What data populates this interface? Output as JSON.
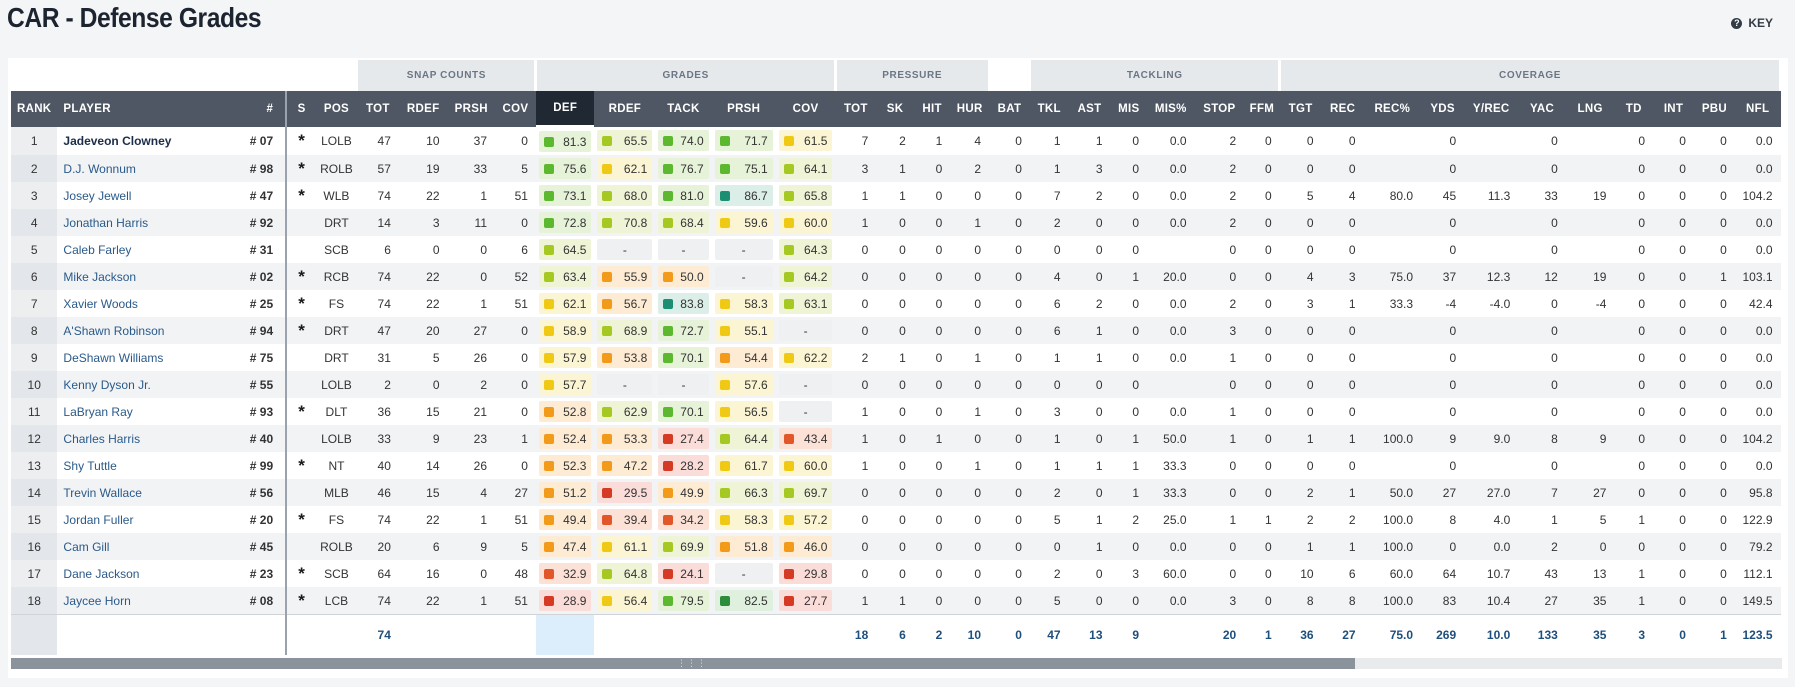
{
  "title": "CAR - Defense Grades",
  "key_label": "KEY",
  "groups": {
    "snap": "SNAP COUNTS",
    "grades": "GRADES",
    "pressure": "PRESSURE",
    "tackling": "TACKLING",
    "coverage": "COVERAGE"
  },
  "headers": [
    "RANK",
    "PLAYER",
    "#",
    "S",
    "POS",
    "TOT",
    "RDEF",
    "PRSH",
    "COV",
    "DEF",
    "RDEF",
    "TACK",
    "PRSH",
    "COV",
    "TOT",
    "SK",
    "HIT",
    "HUR",
    "BAT",
    "TKL",
    "AST",
    "MIS",
    "MIS%",
    "STOP",
    "FFM",
    "TGT",
    "REC",
    "REC%",
    "YDS",
    "Y/REC",
    "YAC",
    "LNG",
    "TD",
    "INT",
    "PBU",
    "NFL"
  ],
  "rows": [
    {
      "rank": "1",
      "player": "Jadeveon Clowney",
      "jersey": "# 07",
      "s": "*",
      "pos": "LOLB",
      "snap": [
        "47",
        "10",
        "37",
        "0"
      ],
      "grades": [
        [
          "81.3",
          "gr"
        ],
        [
          "65.5",
          "lg"
        ],
        [
          "74.0",
          "gr"
        ],
        [
          "71.7",
          "gr"
        ],
        [
          "61.5",
          "yl"
        ]
      ],
      "stats": [
        "7",
        "2",
        "1",
        "4",
        "0",
        "1",
        "1",
        "0",
        "0.0",
        "2",
        "0",
        "0",
        "0",
        "",
        "0",
        "",
        "0",
        "",
        "0",
        "0",
        "0",
        "0.0"
      ]
    },
    {
      "rank": "2",
      "player": "D.J. Wonnum",
      "jersey": "# 98",
      "s": "*",
      "pos": "ROLB",
      "snap": [
        "57",
        "19",
        "33",
        "5"
      ],
      "grades": [
        [
          "75.6",
          "gr"
        ],
        [
          "62.1",
          "yl"
        ],
        [
          "76.7",
          "gr"
        ],
        [
          "75.1",
          "gr"
        ],
        [
          "64.1",
          "lg"
        ]
      ],
      "stats": [
        "3",
        "1",
        "0",
        "2",
        "0",
        "1",
        "3",
        "0",
        "0.0",
        "2",
        "0",
        "0",
        "0",
        "",
        "0",
        "",
        "0",
        "",
        "0",
        "0",
        "0",
        "0.0"
      ]
    },
    {
      "rank": "3",
      "player": "Josey Jewell",
      "jersey": "# 47",
      "s": "*",
      "pos": "WLB",
      "snap": [
        "74",
        "22",
        "1",
        "51"
      ],
      "grades": [
        [
          "73.1",
          "gr"
        ],
        [
          "68.0",
          "lg"
        ],
        [
          "81.0",
          "gr"
        ],
        [
          "86.7",
          "tl"
        ],
        [
          "65.8",
          "lg"
        ]
      ],
      "stats": [
        "1",
        "1",
        "0",
        "0",
        "0",
        "7",
        "2",
        "0",
        "0.0",
        "2",
        "0",
        "5",
        "4",
        "80.0",
        "45",
        "11.3",
        "33",
        "19",
        "0",
        "0",
        "0",
        "104.2"
      ]
    },
    {
      "rank": "4",
      "player": "Jonathan Harris",
      "jersey": "# 92",
      "s": "",
      "pos": "DRT",
      "snap": [
        "14",
        "3",
        "11",
        "0"
      ],
      "grades": [
        [
          "72.8",
          "gr"
        ],
        [
          "70.8",
          "lg"
        ],
        [
          "68.4",
          "lg"
        ],
        [
          "59.6",
          "yl"
        ],
        [
          "60.0",
          "yl"
        ]
      ],
      "stats": [
        "1",
        "0",
        "0",
        "1",
        "0",
        "2",
        "0",
        "0",
        "0.0",
        "2",
        "0",
        "0",
        "0",
        "",
        "0",
        "",
        "0",
        "",
        "0",
        "0",
        "0",
        "0.0"
      ]
    },
    {
      "rank": "5",
      "player": "Caleb Farley",
      "jersey": "# 31",
      "s": "",
      "pos": "SCB",
      "snap": [
        "6",
        "0",
        "0",
        "6"
      ],
      "grades": [
        [
          "64.5",
          "lg"
        ],
        [
          "-",
          ""
        ],
        [
          "-",
          ""
        ],
        [
          "-",
          ""
        ],
        [
          "64.3",
          "lg"
        ]
      ],
      "stats": [
        "0",
        "0",
        "0",
        "0",
        "0",
        "0",
        "0",
        "0",
        "",
        "0",
        "0",
        "0",
        "0",
        "",
        "0",
        "",
        "0",
        "",
        "0",
        "0",
        "0",
        "0.0"
      ]
    },
    {
      "rank": "6",
      "player": "Mike Jackson",
      "jersey": "# 02",
      "s": "*",
      "pos": "RCB",
      "snap": [
        "74",
        "22",
        "0",
        "52"
      ],
      "grades": [
        [
          "63.4",
          "lg"
        ],
        [
          "55.9",
          "or"
        ],
        [
          "50.0",
          "or"
        ],
        [
          "-",
          ""
        ],
        [
          "64.2",
          "lg"
        ]
      ],
      "stats": [
        "0",
        "0",
        "0",
        "0",
        "0",
        "4",
        "0",
        "1",
        "20.0",
        "0",
        "0",
        "4",
        "3",
        "75.0",
        "37",
        "12.3",
        "12",
        "19",
        "0",
        "0",
        "1",
        "103.1"
      ]
    },
    {
      "rank": "7",
      "player": "Xavier Woods",
      "jersey": "# 25",
      "s": "*",
      "pos": "FS",
      "snap": [
        "74",
        "22",
        "1",
        "51"
      ],
      "grades": [
        [
          "62.1",
          "yl"
        ],
        [
          "56.7",
          "or"
        ],
        [
          "83.8",
          "tl"
        ],
        [
          "58.3",
          "yl"
        ],
        [
          "63.1",
          "lg"
        ]
      ],
      "stats": [
        "0",
        "0",
        "0",
        "0",
        "0",
        "6",
        "2",
        "0",
        "0.0",
        "2",
        "0",
        "3",
        "1",
        "33.3",
        "-4",
        "-4.0",
        "0",
        "-4",
        "0",
        "0",
        "0",
        "42.4"
      ]
    },
    {
      "rank": "8",
      "player": "A'Shawn Robinson",
      "jersey": "# 94",
      "s": "*",
      "pos": "DRT",
      "snap": [
        "47",
        "20",
        "27",
        "0"
      ],
      "grades": [
        [
          "58.9",
          "yl"
        ],
        [
          "68.9",
          "lg"
        ],
        [
          "72.7",
          "gr"
        ],
        [
          "55.1",
          "yl"
        ],
        [
          "-",
          ""
        ]
      ],
      "stats": [
        "0",
        "0",
        "0",
        "0",
        "0",
        "6",
        "1",
        "0",
        "0.0",
        "3",
        "0",
        "0",
        "0",
        "",
        "0",
        "",
        "0",
        "",
        "0",
        "0",
        "0",
        "0.0"
      ]
    },
    {
      "rank": "9",
      "player": "DeShawn Williams",
      "jersey": "# 75",
      "s": "",
      "pos": "DRT",
      "snap": [
        "31",
        "5",
        "26",
        "0"
      ],
      "grades": [
        [
          "57.9",
          "yl"
        ],
        [
          "53.8",
          "or"
        ],
        [
          "70.1",
          "gr"
        ],
        [
          "54.4",
          "or"
        ],
        [
          "62.2",
          "yl"
        ]
      ],
      "stats": [
        "2",
        "1",
        "0",
        "1",
        "0",
        "1",
        "1",
        "0",
        "0.0",
        "1",
        "0",
        "0",
        "0",
        "",
        "0",
        "",
        "0",
        "",
        "0",
        "0",
        "0",
        "0.0"
      ]
    },
    {
      "rank": "10",
      "player": "Kenny Dyson Jr.",
      "jersey": "# 55",
      "s": "",
      "pos": "LOLB",
      "snap": [
        "2",
        "0",
        "2",
        "0"
      ],
      "grades": [
        [
          "57.7",
          "yl"
        ],
        [
          "-",
          ""
        ],
        [
          "-",
          ""
        ],
        [
          "57.6",
          "yl"
        ],
        [
          "-",
          ""
        ]
      ],
      "stats": [
        "0",
        "0",
        "0",
        "0",
        "0",
        "0",
        "0",
        "0",
        "",
        "0",
        "0",
        "0",
        "0",
        "",
        "0",
        "",
        "0",
        "",
        "0",
        "0",
        "0",
        "0.0"
      ]
    },
    {
      "rank": "11",
      "player": "LaBryan Ray",
      "jersey": "# 93",
      "s": "*",
      "pos": "DLT",
      "snap": [
        "36",
        "15",
        "21",
        "0"
      ],
      "grades": [
        [
          "52.8",
          "or"
        ],
        [
          "62.9",
          "lg"
        ],
        [
          "70.1",
          "gr"
        ],
        [
          "56.5",
          "yl"
        ],
        [
          "-",
          ""
        ]
      ],
      "stats": [
        "1",
        "0",
        "0",
        "1",
        "0",
        "3",
        "0",
        "0",
        "0.0",
        "1",
        "0",
        "0",
        "0",
        "",
        "0",
        "",
        "0",
        "",
        "0",
        "0",
        "0",
        "0.0"
      ]
    },
    {
      "rank": "12",
      "player": "Charles Harris",
      "jersey": "# 40",
      "s": "",
      "pos": "LOLB",
      "snap": [
        "33",
        "9",
        "23",
        "1"
      ],
      "grades": [
        [
          "52.4",
          "or"
        ],
        [
          "53.3",
          "or"
        ],
        [
          "27.4",
          "rd"
        ],
        [
          "64.4",
          "lg"
        ],
        [
          "43.4",
          "ro"
        ]
      ],
      "stats": [
        "1",
        "0",
        "1",
        "0",
        "0",
        "1",
        "0",
        "1",
        "50.0",
        "1",
        "0",
        "1",
        "1",
        "100.0",
        "9",
        "9.0",
        "8",
        "9",
        "0",
        "0",
        "0",
        "104.2"
      ]
    },
    {
      "rank": "13",
      "player": "Shy Tuttle",
      "jersey": "# 99",
      "s": "*",
      "pos": "NT",
      "snap": [
        "40",
        "14",
        "26",
        "0"
      ],
      "grades": [
        [
          "52.3",
          "or"
        ],
        [
          "47.2",
          "or"
        ],
        [
          "28.2",
          "rd"
        ],
        [
          "61.7",
          "yl"
        ],
        [
          "60.0",
          "yl"
        ]
      ],
      "stats": [
        "1",
        "0",
        "0",
        "1",
        "0",
        "1",
        "1",
        "1",
        "33.3",
        "0",
        "0",
        "0",
        "0",
        "",
        "0",
        "",
        "0",
        "",
        "0",
        "0",
        "0",
        "0.0"
      ]
    },
    {
      "rank": "14",
      "player": "Trevin Wallace",
      "jersey": "# 56",
      "s": "",
      "pos": "MLB",
      "snap": [
        "46",
        "15",
        "4",
        "27"
      ],
      "grades": [
        [
          "51.2",
          "or"
        ],
        [
          "29.5",
          "rd"
        ],
        [
          "49.9",
          "or"
        ],
        [
          "66.3",
          "lg"
        ],
        [
          "69.7",
          "lg"
        ]
      ],
      "stats": [
        "0",
        "0",
        "0",
        "0",
        "0",
        "2",
        "0",
        "1",
        "33.3",
        "0",
        "0",
        "2",
        "1",
        "50.0",
        "27",
        "27.0",
        "7",
        "27",
        "0",
        "0",
        "0",
        "95.8"
      ]
    },
    {
      "rank": "15",
      "player": "Jordan Fuller",
      "jersey": "# 20",
      "s": "*",
      "pos": "FS",
      "snap": [
        "74",
        "22",
        "1",
        "51"
      ],
      "grades": [
        [
          "49.4",
          "or"
        ],
        [
          "39.4",
          "ro"
        ],
        [
          "34.2",
          "ro"
        ],
        [
          "58.3",
          "yl"
        ],
        [
          "57.2",
          "yl"
        ]
      ],
      "stats": [
        "0",
        "0",
        "0",
        "0",
        "0",
        "5",
        "1",
        "2",
        "25.0",
        "1",
        "1",
        "2",
        "2",
        "100.0",
        "8",
        "4.0",
        "1",
        "5",
        "1",
        "0",
        "0",
        "122.9"
      ]
    },
    {
      "rank": "16",
      "player": "Cam Gill",
      "jersey": "# 45",
      "s": "",
      "pos": "ROLB",
      "snap": [
        "20",
        "6",
        "9",
        "5"
      ],
      "grades": [
        [
          "47.4",
          "or"
        ],
        [
          "61.1",
          "yl"
        ],
        [
          "69.9",
          "lg"
        ],
        [
          "51.8",
          "or"
        ],
        [
          "46.0",
          "or"
        ]
      ],
      "stats": [
        "0",
        "0",
        "0",
        "0",
        "0",
        "0",
        "1",
        "0",
        "0.0",
        "0",
        "0",
        "1",
        "1",
        "100.0",
        "0",
        "0.0",
        "2",
        "0",
        "0",
        "0",
        "0",
        "79.2"
      ]
    },
    {
      "rank": "17",
      "player": "Dane Jackson",
      "jersey": "# 23",
      "s": "*",
      "pos": "SCB",
      "snap": [
        "64",
        "16",
        "0",
        "48"
      ],
      "grades": [
        [
          "32.9",
          "ro"
        ],
        [
          "64.8",
          "lg"
        ],
        [
          "24.1",
          "rd"
        ],
        [
          "-",
          ""
        ],
        [
          "29.8",
          "rd"
        ]
      ],
      "stats": [
        "0",
        "0",
        "0",
        "0",
        "0",
        "2",
        "0",
        "3",
        "60.0",
        "0",
        "0",
        "10",
        "6",
        "60.0",
        "64",
        "10.7",
        "43",
        "13",
        "1",
        "0",
        "0",
        "112.1"
      ]
    },
    {
      "rank": "18",
      "player": "Jaycee Horn",
      "jersey": "# 08",
      "s": "*",
      "pos": "LCB",
      "snap": [
        "74",
        "22",
        "1",
        "51"
      ],
      "grades": [
        [
          "28.9",
          "rd"
        ],
        [
          "56.4",
          "yl"
        ],
        [
          "79.5",
          "gr"
        ],
        [
          "82.5",
          "dg"
        ],
        [
          "27.7",
          "rd"
        ]
      ],
      "stats": [
        "1",
        "1",
        "0",
        "0",
        "0",
        "5",
        "0",
        "0",
        "0.0",
        "3",
        "0",
        "8",
        "8",
        "100.0",
        "83",
        "10.4",
        "27",
        "35",
        "1",
        "0",
        "0",
        "149.5"
      ]
    }
  ],
  "totals": {
    "snap_tot": "74",
    "stats": [
      "18",
      "6",
      "2",
      "10",
      "0",
      "47",
      "13",
      "9",
      "",
      "20",
      "1",
      "36",
      "27",
      "75.0",
      "269",
      "10.0",
      "133",
      "35",
      "3",
      "0",
      "1",
      "123.5"
    ]
  },
  "colors": {
    "header_bg": "#4e5763",
    "active_col": "#1f2833",
    "total_text": "#1e4e7c"
  }
}
